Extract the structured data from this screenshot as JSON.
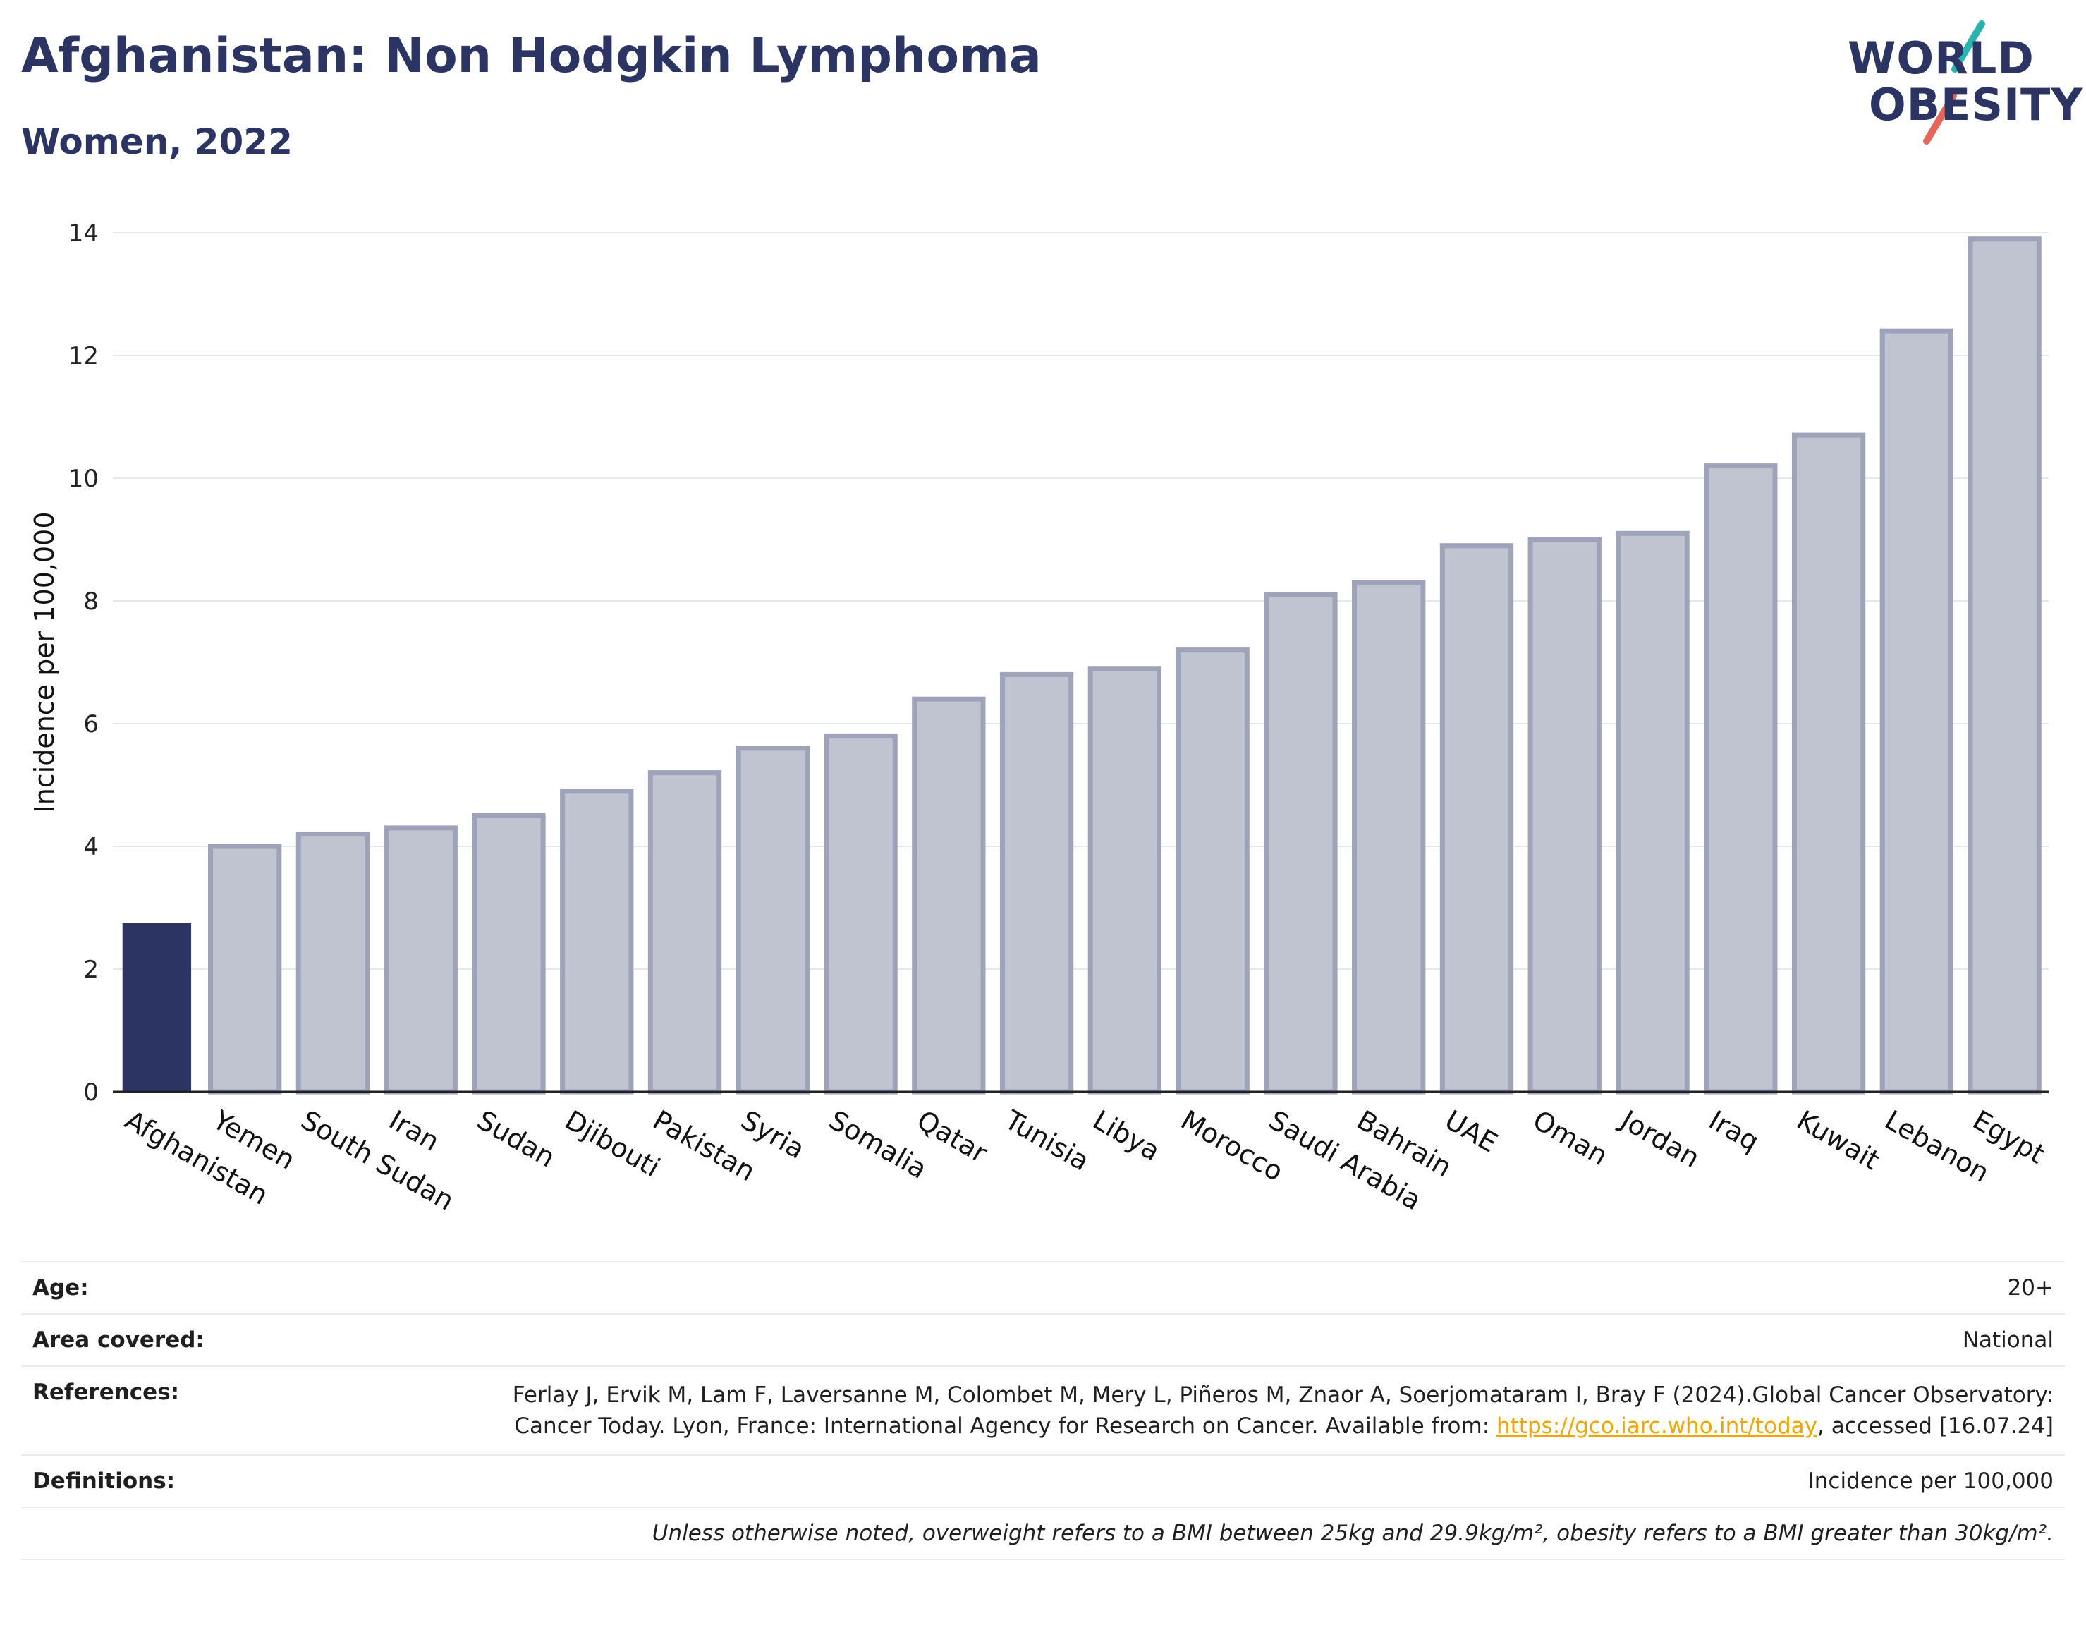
{
  "header": {
    "title": "Afghanistan: Non Hodgkin Lymphoma",
    "subtitle": "Women, 2022"
  },
  "logo": {
    "line1": "WORLD",
    "line2": "OBESITY",
    "slash_colors": [
      "#2ab3b1",
      "#e8655a"
    ]
  },
  "colors": {
    "highlight": "#2b3462",
    "bar_fill": "#c0c3d0",
    "bar_stroke": "#9ea3ba",
    "link": "#f0a500"
  },
  "chart_data": {
    "type": "bar",
    "ylabel": "Incidence per 100,000",
    "ylim": [
      0,
      14
    ],
    "yticks": [
      0,
      2,
      4,
      6,
      8,
      10,
      12,
      14
    ],
    "grid": true,
    "highlight_category": "Afghanistan",
    "categories": [
      "Afghanistan",
      "Yemen",
      "South Sudan",
      "Iran",
      "Sudan",
      "Djibouti",
      "Pakistan",
      "Syria",
      "Somalia",
      "Qatar",
      "Tunisia",
      "Libya",
      "Morocco",
      "Saudi Arabia",
      "Bahrain",
      "UAE",
      "Oman",
      "Jordan",
      "Iraq",
      "Kuwait",
      "Lebanon",
      "Egypt"
    ],
    "values": [
      2.75,
      4.0,
      4.2,
      4.3,
      4.5,
      4.9,
      5.2,
      5.6,
      5.8,
      6.4,
      6.8,
      6.9,
      7.2,
      8.1,
      8.3,
      8.9,
      9.0,
      9.1,
      10.2,
      10.7,
      12.4,
      13.9
    ]
  },
  "info": {
    "age_label": "Age:",
    "age_value": "20+",
    "area_label": "Area covered:",
    "area_value": "National",
    "references_label": "References:",
    "references_text": "Ferlay J, Ervik M, Lam F, Laversanne M, Colombet M, Mery L, Piñeros M, Znaor A, Soerjomataram I, Bray F (2024).Global Cancer Observatory: Cancer Today. Lyon, France: International Agency for Research on Cancer. Available from:",
    "references_link": "https://gco.iarc.who.int/today",
    "references_suffix": ", accessed [16.07.24]",
    "definitions_label": "Definitions:",
    "definitions_value": "Incidence per 100,000",
    "note": "Unless otherwise noted, overweight refers to a BMI between 25kg and 29.9kg/m², obesity refers to a BMI greater than 30kg/m²."
  }
}
